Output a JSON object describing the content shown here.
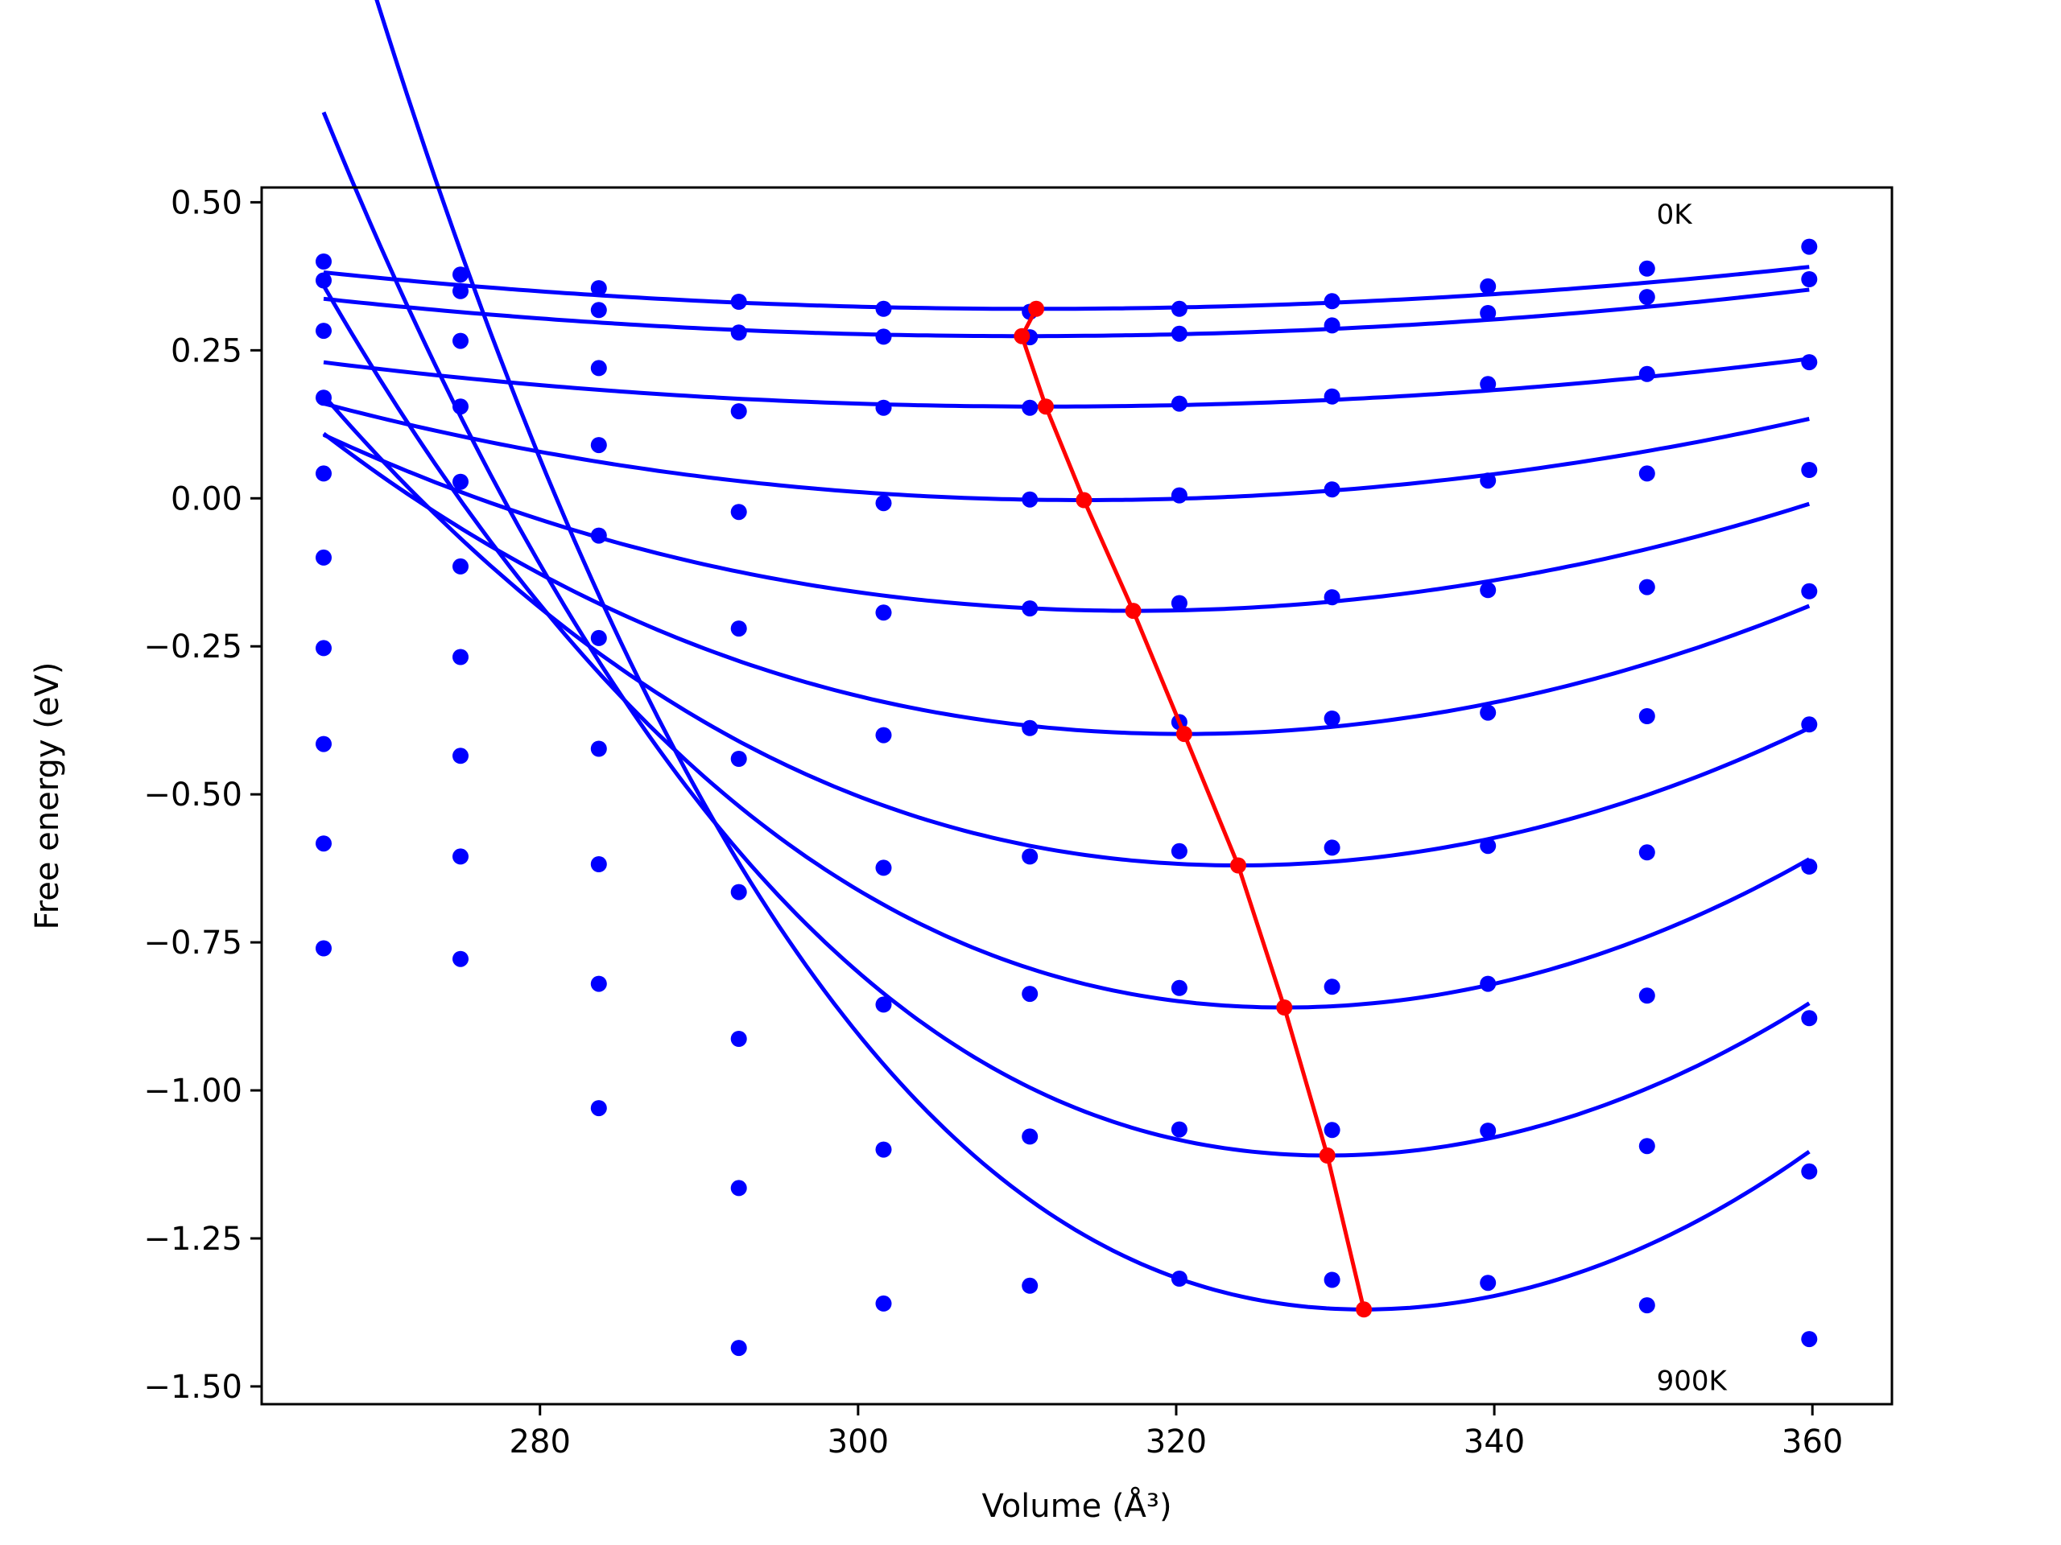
{
  "chart_data": {
    "type": "line",
    "title": "",
    "xlabel": "Volume (Å³)",
    "ylabel": "Free energy (eV)",
    "xlim": [
      262.5,
      365
    ],
    "ylim": [
      -1.53,
      0.525
    ],
    "x_ticks": [
      280,
      300,
      320,
      340,
      360
    ],
    "x_tick_labels": [
      "280",
      "300",
      "320",
      "340",
      "360"
    ],
    "y_ticks": [
      0.5,
      0.25,
      0.0,
      -0.25,
      -0.5,
      -0.75,
      -1.0,
      -1.25,
      -1.5
    ],
    "y_tick_labels": [
      "0.50",
      "0.25",
      "0.00",
      "−0.25",
      "−0.50",
      "−0.75",
      "−1.00",
      "−1.25",
      "−1.50"
    ],
    "grid": false,
    "legend": "none",
    "colors": {
      "points": "#0000ff",
      "fits": "#0000ff",
      "minima": "#ff0000",
      "frame": "#000000"
    },
    "annotations": [
      {
        "text": "0K",
        "x": 350.2,
        "y": 0.48
      },
      {
        "text": "900K",
        "x": 350.2,
        "y": -1.49
      }
    ],
    "volumes": [
      266.4,
      275.0,
      283.7,
      292.5,
      301.6,
      310.8,
      320.2,
      329.8,
      339.6,
      349.6,
      359.8
    ],
    "series": [
      {
        "fit": {
          "v0": 311.2,
          "e0": 0.32,
          "a": 3e-05,
          "c": 0.0005
        },
        "points": [
          0.4,
          0.378,
          0.355,
          0.332,
          0.32,
          0.315,
          0.32,
          0.333,
          0.358,
          0.388,
          0.425
        ]
      },
      {
        "fit": {
          "v0": 310.3,
          "e0": 0.274,
          "a": 3.2e-05,
          "c": 0.0005
        },
        "points": [
          0.368,
          0.35,
          0.318,
          0.28,
          0.273,
          0.272,
          0.278,
          0.292,
          0.313,
          0.34,
          0.37
        ]
      },
      {
        "fit": {
          "v0": 311.8,
          "e0": 0.155,
          "a": 3.5e-05,
          "c": 0.0008
        },
        "points": [
          0.283,
          0.266,
          0.22,
          0.147,
          0.153,
          0.153,
          0.16,
          0.172,
          0.193,
          0.21,
          0.23
        ]
      },
      {
        "fit": {
          "v0": 314.2,
          "e0": -0.003,
          "a": 6.6e-05,
          "c": 0.0017
        },
        "points": [
          0.17,
          0.155,
          0.09,
          -0.023,
          -0.008,
          -0.002,
          0.005,
          0.015,
          0.03,
          0.042,
          0.048
        ]
      },
      {
        "fit": {
          "v0": 317.3,
          "e0": -0.19,
          "a": 0.0001,
          "c": 0.0029
        },
        "points": [
          0.042,
          0.028,
          -0.063,
          -0.22,
          -0.193,
          -0.186,
          -0.177,
          -0.167,
          -0.155,
          -0.15,
          -0.157
        ]
      },
      {
        "fit": {
          "v0": 320.5,
          "e0": -0.398,
          "a": 0.00014,
          "c": 0.0044
        },
        "points": [
          -0.1,
          -0.115,
          -0.236,
          -0.44,
          -0.4,
          -0.388,
          -0.378,
          -0.372,
          -0.362,
          -0.368,
          -0.382
        ]
      },
      {
        "fit": {
          "v0": 323.9,
          "e0": -0.62,
          "a": 0.00018,
          "c": 0.0058
        },
        "points": [
          -0.253,
          -0.268,
          -0.423,
          -0.665,
          -0.624,
          -0.605,
          -0.596,
          -0.59,
          -0.587,
          -0.598,
          -0.622
        ]
      },
      {
        "fit": {
          "v0": 326.8,
          "e0": -0.86,
          "a": 0.00023,
          "c": 0.0075
        },
        "points": [
          -0.415,
          -0.435,
          -0.618,
          -0.913,
          -0.855,
          -0.837,
          -0.827,
          -0.825,
          -0.82,
          -0.84,
          -0.878
        ]
      },
      {
        "fit": {
          "v0": 329.5,
          "e0": -1.11,
          "a": 0.00028,
          "c": 0.0092
        },
        "points": [
          -0.583,
          -0.605,
          -0.82,
          -1.165,
          -1.1,
          -1.078,
          -1.066,
          -1.067,
          -1.068,
          -1.094,
          -1.137
        ]
      },
      {
        "fit": {
          "v0": 331.8,
          "e0": -1.37,
          "a": 0.00034,
          "c": 0.0111
        },
        "points": [
          -0.76,
          -0.778,
          -1.03,
          -1.435,
          -1.36,
          -1.33,
          -1.318,
          -1.32,
          -1.325,
          -1.363,
          -1.42
        ]
      }
    ],
    "fit_v_range": [
      266.4,
      359.8
    ],
    "minima_line": {
      "x": [
        311.2,
        310.3,
        311.8,
        314.2,
        317.3,
        320.5,
        323.9,
        326.8,
        329.5,
        331.8
      ],
      "y": [
        0.32,
        0.274,
        0.155,
        -0.003,
        -0.19,
        -0.398,
        -0.62,
        -0.86,
        -1.11,
        -1.37
      ]
    }
  }
}
